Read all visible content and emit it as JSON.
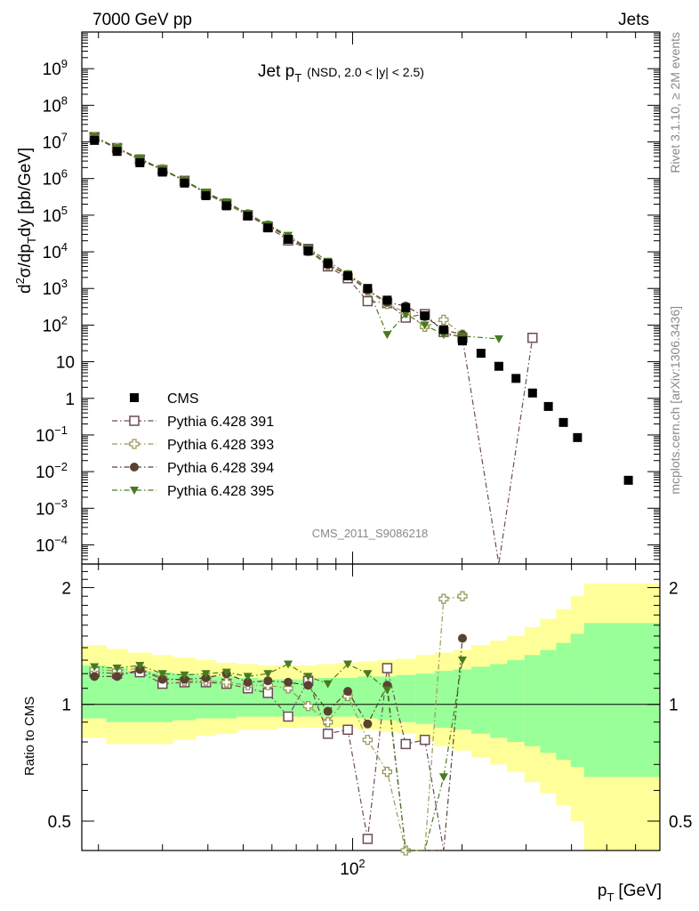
{
  "header": {
    "left": "7000 GeV pp",
    "right": "Jets"
  },
  "side_labels": {
    "rivet": "Rivet 3.1.10, ≥ 2M events",
    "mcplots": "mcplots.cern.ch [arXiv:1306.3436]"
  },
  "watermark": "CMS_2011_S9086218",
  "chart_data": [
    {
      "type": "scatter",
      "title": "Jet p",
      "title_sub": "T",
      "title_note": "(NSD, 2.0 < |y| < 2.5)",
      "ylabel": "d²σ/dp_T dy [pb/GeV]",
      "ylabel_parts": {
        "d": "d",
        "sup": "2",
        "mid": "σ/dp",
        "sub": "T",
        "end": "dy [pb/GeV]"
      },
      "xlabel": "p",
      "xlabel_sub": "T",
      "xlabel_unit": "[GeV]",
      "xscale": "log",
      "yscale": "log",
      "xlim": [
        18,
        700
      ],
      "ylim": [
        3e-05,
        10000000000
      ],
      "yticks": [
        {
          "v": 1000000000.0,
          "base": "10",
          "exp": "9"
        },
        {
          "v": 100000000.0,
          "base": "10",
          "exp": "8"
        },
        {
          "v": 10000000.0,
          "base": "10",
          "exp": "7"
        },
        {
          "v": 1000000.0,
          "base": "10",
          "exp": "6"
        },
        {
          "v": 100000.0,
          "base": "10",
          "exp": "5"
        },
        {
          "v": 10000.0,
          "base": "10",
          "exp": "4"
        },
        {
          "v": 1000.0,
          "base": "10",
          "exp": "3"
        },
        {
          "v": 100.0,
          "base": "10",
          "exp": "2"
        },
        {
          "v": 10,
          "base": "10",
          "exp": ""
        },
        {
          "v": 1,
          "base": "1",
          "exp": ""
        },
        {
          "v": 0.1,
          "base": "10",
          "exp": "−1"
        },
        {
          "v": 0.01,
          "base": "10",
          "exp": "−2"
        },
        {
          "v": 0.001,
          "base": "10",
          "exp": "−3"
        },
        {
          "v": 0.0001,
          "base": "10",
          "exp": "−4"
        }
      ],
      "xtick_label": {
        "v": 100,
        "base": "10",
        "exp": "2"
      },
      "legend_position": "lower-left",
      "series": [
        {
          "name": "CMS",
          "marker": "filled-square",
          "color": "#000000",
          "x": [
            19.5,
            22.5,
            26,
            30,
            34.5,
            39.5,
            45,
            51.5,
            58.5,
            66.5,
            75.5,
            85.5,
            97,
            110,
            124.5,
            140,
            158,
            178,
            200.5,
            225.5,
            252.5,
            281.5,
            312.5,
            345.5,
            380,
            415.5,
            453,
            573.5
          ],
          "y": [
            11000000,
            5500000,
            2700000,
            1500000,
            750000,
            340000,
            180000,
            95000,
            45000,
            22000,
            10500,
            4800,
            2200,
            1000,
            480,
            300,
            180,
            75,
            37,
            17,
            7.5,
            3.5,
            1.4,
            0.6,
            0.22,
            0.085,
            0,
            0.0058
          ]
        },
        {
          "name": "Pythia 6.428 391",
          "marker": "open-square",
          "color": "#6e4a5a",
          "x": [
            19.5,
            22.5,
            26,
            30,
            34.5,
            39.5,
            45,
            51.5,
            58.5,
            66.5,
            75.5,
            85.5,
            97,
            110,
            124.5,
            140,
            158,
            178,
            200.5,
            252.5,
            312.5
          ],
          "y": [
            13500000,
            6800000,
            3300000,
            1700000,
            870000,
            385000,
            200000,
            100000,
            48000,
            20500,
            12000,
            4000,
            1900,
            450,
            400,
            160,
            200,
            65,
            45,
            0,
            45
          ]
        },
        {
          "name": "Pythia 6.428 393",
          "marker": "open-cross",
          "color": "#9a9a5a",
          "x": [
            19.5,
            22.5,
            26,
            30,
            34.5,
            39.5,
            45,
            51.5,
            58.5,
            66.5,
            75.5,
            85.5,
            97,
            110,
            124.5,
            140,
            158,
            178,
            200.5
          ],
          "y": [
            13800000,
            6900000,
            3400000,
            1800000,
            880000,
            390000,
            200000,
            105000,
            52000,
            24000,
            10500,
            4300,
            2300,
            850,
            380,
            220,
            90,
            140,
            55
          ]
        },
        {
          "name": "Pythia 6.428 394",
          "marker": "filled-circle",
          "color": "#5a4230",
          "x": [
            19.5,
            22.5,
            26,
            30,
            34.5,
            39.5,
            45,
            51.5,
            58.5,
            66.5,
            75.5,
            85.5,
            97,
            110,
            124.5,
            140,
            158,
            178,
            200.5
          ],
          "y": [
            13000000,
            6600000,
            3300000,
            1750000,
            880000,
            400000,
            220000,
            108000,
            53000,
            25000,
            11800,
            4500,
            2400,
            900,
            420,
            330,
            170,
            75,
            55
          ]
        },
        {
          "name": "Pythia 6.428 395",
          "marker": "filled-triangle-down",
          "color": "#4a7a20",
          "x": [
            19.5,
            22.5,
            26,
            30,
            34.5,
            39.5,
            45,
            51.5,
            58.5,
            66.5,
            75.5,
            85.5,
            97,
            110,
            124.5,
            140,
            158,
            178,
            200.5,
            252.5
          ],
          "y": [
            14000000,
            6900000,
            3500000,
            1800000,
            900000,
            420000,
            230000,
            110000,
            55000,
            28000,
            12500,
            5500,
            2500,
            1050,
            55,
            200,
            100,
            55,
            50,
            42
          ]
        }
      ]
    },
    {
      "type": "scatter",
      "ylabel": "Ratio to CMS",
      "xscale": "log",
      "yscale": "log",
      "xlim": [
        18,
        700
      ],
      "ylim": [
        0.42,
        2.3
      ],
      "yticks": [
        {
          "v": 2,
          "label": "2"
        },
        {
          "v": 1,
          "label": "1"
        },
        {
          "v": 0.5,
          "label": "0.5"
        }
      ],
      "bands": {
        "edges": [
          18,
          21,
          24,
          28,
          32,
          37,
          42,
          48,
          55,
          62,
          71,
          80,
          91,
          103,
          117,
          132,
          149,
          168,
          189,
          212,
          239,
          266,
          297,
          328,
          363,
          398,
          433,
          473,
          700
        ],
        "yellow_low": [
          0.82,
          0.79,
          0.79,
          0.79,
          0.81,
          0.83,
          0.84,
          0.86,
          0.86,
          0.87,
          0.87,
          0.87,
          0.87,
          0.86,
          0.85,
          0.84,
          0.81,
          0.78,
          0.76,
          0.73,
          0.7,
          0.67,
          0.63,
          0.59,
          0.55,
          0.5,
          0.42,
          0.42
        ],
        "yellow_high": [
          1.42,
          1.39,
          1.36,
          1.34,
          1.32,
          1.3,
          1.28,
          1.27,
          1.26,
          1.26,
          1.26,
          1.27,
          1.28,
          1.29,
          1.3,
          1.31,
          1.34,
          1.36,
          1.38,
          1.42,
          1.46,
          1.5,
          1.58,
          1.66,
          1.76,
          1.9,
          2.05,
          2.05
        ],
        "green_low": [
          0.92,
          0.9,
          0.9,
          0.9,
          0.91,
          0.92,
          0.92,
          0.93,
          0.93,
          0.93,
          0.93,
          0.93,
          0.93,
          0.92,
          0.91,
          0.9,
          0.89,
          0.87,
          0.86,
          0.84,
          0.82,
          0.8,
          0.78,
          0.75,
          0.72,
          0.69,
          0.65,
          0.65
        ],
        "green_high": [
          1.26,
          1.24,
          1.22,
          1.21,
          1.2,
          1.19,
          1.18,
          1.17,
          1.16,
          1.16,
          1.16,
          1.17,
          1.17,
          1.18,
          1.18,
          1.19,
          1.2,
          1.22,
          1.23,
          1.25,
          1.27,
          1.3,
          1.34,
          1.38,
          1.44,
          1.52,
          1.62,
          1.62
        ],
        "yellow_color": "#ffff99",
        "green_color": "#99ff99"
      },
      "series": [
        {
          "name": "Pythia 6.428 391",
          "x": [
            19.5,
            22.5,
            26,
            30,
            34.5,
            39.5,
            45,
            51.5,
            58.5,
            66.5,
            75.5,
            85.5,
            97,
            110,
            124.5,
            140,
            158,
            178
          ],
          "y": [
            1.21,
            1.2,
            1.21,
            1.13,
            1.14,
            1.14,
            1.13,
            1.1,
            1.07,
            0.93,
            1.15,
            0.84,
            0.86,
            0.45,
            1.24,
            0.79,
            0.81,
            0
          ]
        },
        {
          "name": "Pythia 6.428 393",
          "x": [
            19.5,
            22.5,
            26,
            30,
            34.5,
            39.5,
            45,
            51.5,
            58.5,
            66.5,
            75.5,
            85.5,
            97,
            110,
            124.5,
            140,
            158,
            178,
            200.5
          ],
          "y": [
            1.23,
            1.22,
            1.24,
            1.17,
            1.15,
            1.15,
            1.14,
            1.12,
            1.12,
            1.1,
            0.99,
            0.9,
            1.05,
            0.81,
            0.67,
            0.42,
            0.0,
            1.87,
            1.9
          ]
        },
        {
          "name": "Pythia 6.428 394",
          "x": [
            19.5,
            22.5,
            26,
            30,
            34.5,
            39.5,
            45,
            51.5,
            58.5,
            66.5,
            75.5,
            85.5,
            97,
            110,
            124.5,
            140,
            158,
            178,
            200.5
          ],
          "y": [
            1.18,
            1.18,
            1.23,
            1.16,
            1.16,
            1.17,
            1.2,
            1.14,
            1.15,
            1.14,
            1.12,
            0.96,
            1.08,
            0.89,
            1.12,
            0.0,
            0.0,
            0.0,
            1.48
          ]
        },
        {
          "name": "Pythia 6.428 395",
          "x": [
            19.5,
            22.5,
            26,
            30,
            34.5,
            39.5,
            45,
            51.5,
            58.5,
            66.5,
            75.5,
            85.5,
            97,
            110,
            124.5,
            140,
            158,
            178,
            200.5
          ],
          "y": [
            1.25,
            1.24,
            1.26,
            1.2,
            1.19,
            1.2,
            1.21,
            1.18,
            1.2,
            1.27,
            1.18,
            1.13,
            1.27,
            1.2,
            1.09,
            0.0,
            0.0,
            0.65,
            1.3
          ]
        }
      ]
    }
  ]
}
